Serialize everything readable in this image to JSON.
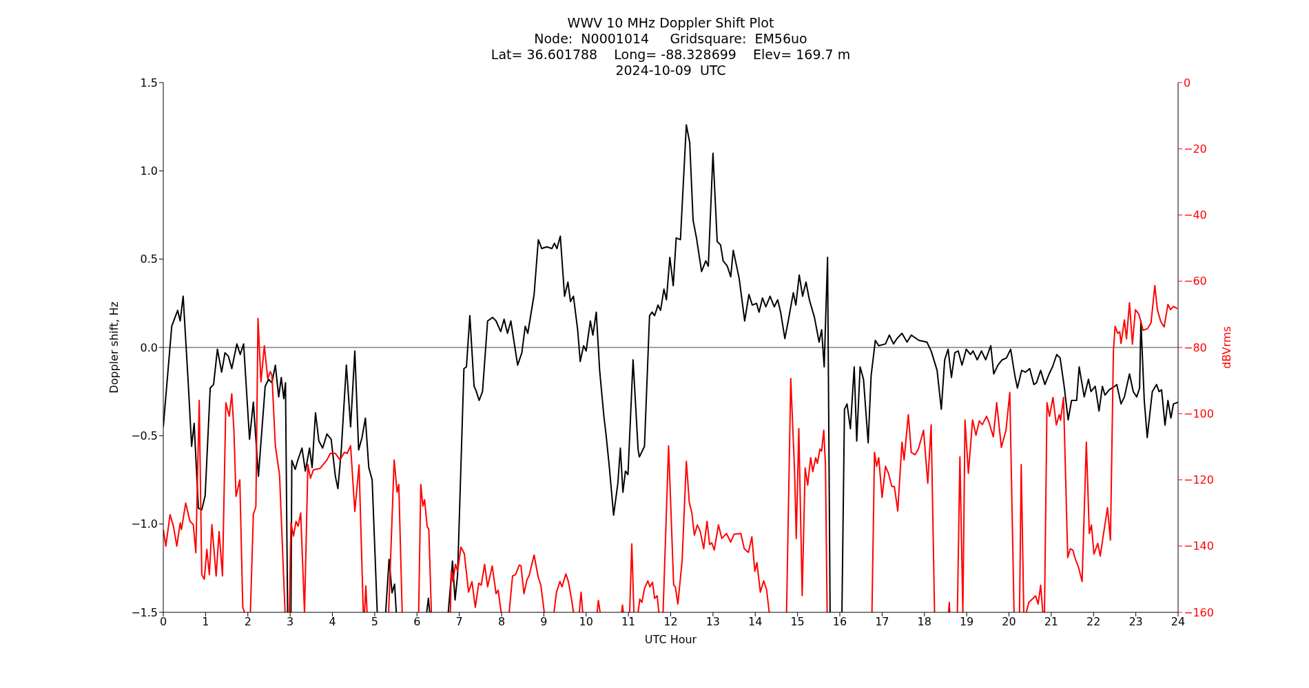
{
  "chart_data": {
    "type": "line",
    "title": "WWV 10 MHz Doppler Shift Plot",
    "subtitle": "Node:  N0001014     Gridsquare:  EM56uo\nLat= 36.601788    Long= -88.328699    Elev= 169.7 m\n2024-10-09  UTC",
    "xlabel": "UTC Hour",
    "ylabel": "Doppler shift, Hz",
    "y2label": "dBVrms",
    "xlim": [
      0,
      24
    ],
    "xticks": [
      0,
      1,
      2,
      3,
      4,
      5,
      6,
      7,
      8,
      9,
      10,
      11,
      12,
      13,
      14,
      15,
      16,
      17,
      18,
      19,
      20,
      21,
      22,
      23,
      24
    ],
    "ylim": [
      -1.5,
      1.5
    ],
    "yticks": [
      {
        "value": -1.5,
        "label": "−1.5"
      },
      {
        "value": -1,
        "label": "−1.0"
      },
      {
        "value": -0.5,
        "label": "−0.5"
      },
      {
        "value": 0,
        "label": "0.0"
      },
      {
        "value": 0.5,
        "label": "0.5"
      },
      {
        "value": 1,
        "label": "1.0"
      },
      {
        "value": 1.5,
        "label": "1.5"
      }
    ],
    "y2lim": [
      -160,
      0
    ],
    "y2ticks": [
      {
        "value": -160,
        "label": "−160"
      },
      {
        "value": -140,
        "label": "−140"
      },
      {
        "value": -120,
        "label": "−120"
      },
      {
        "value": -100,
        "label": "−100"
      },
      {
        "value": -80,
        "label": "−80"
      },
      {
        "value": -60,
        "label": "−60"
      },
      {
        "value": -40,
        "label": "−40"
      },
      {
        "value": -20,
        "label": "−20"
      },
      {
        "value": 0,
        "label": "0"
      }
    ],
    "grid": false,
    "legend": false,
    "ref_lines": [
      {
        "axis": "y",
        "value": 0,
        "color": "#808080"
      }
    ],
    "series": [
      {
        "color": "#000000",
        "x": [
          0,
          0.2,
          0.34,
          0.4,
          0.47,
          0.59,
          0.67,
          0.73,
          0.83,
          0.91,
          0.99,
          1.11,
          1.19,
          1.28,
          1.38,
          1.46,
          1.54,
          1.62,
          1.74,
          1.82,
          1.9,
          2.04,
          2.13,
          2.25,
          2.41,
          2.49,
          2.57,
          2.65,
          2.73,
          2.79,
          2.85,
          2.89,
          2.94,
          2.98,
          3.02,
          3.04,
          3.12,
          3.18,
          3.28,
          3.36,
          3.46,
          3.52,
          3.6,
          3.68,
          3.77,
          3.87,
          3.97,
          4.07,
          4.13,
          4.21,
          4.33,
          4.43,
          4.53,
          4.62,
          4.7,
          4.78,
          4.86,
          4.94,
          5.06,
          5.16,
          5.26,
          5.34,
          5.41,
          5.47,
          5.51,
          5.9,
          6.23,
          6.27,
          6.3,
          6.5,
          6.74,
          6.84,
          6.9,
          6.96,
          7.11,
          7.17,
          7.25,
          7.35,
          7.39,
          7.47,
          7.55,
          7.67,
          7.79,
          7.87,
          7.98,
          8.06,
          8.14,
          8.22,
          8.38,
          8.48,
          8.56,
          8.62,
          8.77,
          8.87,
          8.95,
          9.07,
          9.19,
          9.25,
          9.31,
          9.39,
          9.49,
          9.57,
          9.63,
          9.7,
          9.8,
          9.86,
          9.94,
          10,
          10.1,
          10.16,
          10.24,
          10.32,
          10.42,
          10.47,
          10.55,
          10.65,
          10.75,
          10.81,
          10.87,
          10.93,
          10.99,
          11.11,
          11.23,
          11.26,
          11.38,
          11.5,
          11.56,
          11.62,
          11.7,
          11.76,
          11.84,
          11.9,
          11.98,
          12.06,
          12.13,
          12.23,
          12.37,
          12.45,
          12.53,
          12.61,
          12.73,
          12.83,
          12.89,
          13,
          13.1,
          13.18,
          13.24,
          13.34,
          13.42,
          13.48,
          13.62,
          13.75,
          13.85,
          13.93,
          14.03,
          14.09,
          14.17,
          14.25,
          14.35,
          14.45,
          14.53,
          14.6,
          14.7,
          14.78,
          14.9,
          14.96,
          15.04,
          15.12,
          15.2,
          15.28,
          15.4,
          15.51,
          15.57,
          15.63,
          15.71,
          15.77,
          15.9,
          16.05,
          16.11,
          16.17,
          16.25,
          16.34,
          16.4,
          16.48,
          16.56,
          16.67,
          16.74,
          16.84,
          16.92,
          17.08,
          17.17,
          17.27,
          17.35,
          17.47,
          17.59,
          17.69,
          17.87,
          18.06,
          18.16,
          18.3,
          18.4,
          18.48,
          18.56,
          18.64,
          18.72,
          18.8,
          18.89,
          18.99,
          19.09,
          19.15,
          19.25,
          19.35,
          19.45,
          19.57,
          19.64,
          19.74,
          19.84,
          19.94,
          20.04,
          20.14,
          20.2,
          20.3,
          20.39,
          20.49,
          20.59,
          20.65,
          20.75,
          20.85,
          20.95,
          21.03,
          21.13,
          21.21,
          21.3,
          21.4,
          21.48,
          21.6,
          21.66,
          21.78,
          21.88,
          21.94,
          22.04,
          22.13,
          22.21,
          22.27,
          22.37,
          22.5,
          22.55,
          22.65,
          22.73,
          22.85,
          22.94,
          23.02,
          23.09,
          23.12,
          23.2,
          23.27,
          23.39,
          23.49,
          23.55,
          23.61,
          23.69,
          23.76,
          23.83,
          23.89,
          24
        ],
        "values": [
          -0.45,
          0.12,
          0.21,
          0.15,
          0.29,
          -0.2,
          -0.56,
          -0.43,
          -0.91,
          -0.92,
          -0.84,
          -0.23,
          -0.21,
          -0.01,
          -0.14,
          -0.03,
          -0.05,
          -0.12,
          0.02,
          -0.04,
          0.02,
          -0.52,
          -0.31,
          -0.73,
          -0.22,
          -0.18,
          -0.2,
          -0.1,
          -0.28,
          -0.17,
          -0.29,
          -0.2,
          -1.5,
          null,
          -1.5,
          -0.64,
          -0.69,
          -0.64,
          -0.57,
          -0.7,
          -0.57,
          -0.68,
          -0.37,
          -0.53,
          -0.57,
          -0.49,
          -0.52,
          -0.73,
          -0.8,
          -0.58,
          -0.1,
          -0.45,
          -0.02,
          -0.58,
          -0.51,
          -0.4,
          -0.68,
          -0.75,
          -1.5,
          null,
          -1.5,
          -1.2,
          -1.39,
          -1.34,
          -1.5,
          null,
          -1.5,
          -1.42,
          -1.5,
          null,
          -1.5,
          -1.21,
          -1.43,
          -1.29,
          -0.12,
          -0.11,
          0.18,
          -0.22,
          -0.24,
          -0.3,
          -0.25,
          0.15,
          0.17,
          0.15,
          0.09,
          0.16,
          0.08,
          0.15,
          -0.1,
          -0.03,
          0.12,
          0.08,
          0.3,
          0.61,
          0.56,
          0.57,
          0.56,
          0.59,
          0.56,
          0.63,
          0.29,
          0.37,
          0.26,
          0.29,
          0.1,
          -0.08,
          0.01,
          -0.02,
          0.15,
          0.07,
          0.2,
          -0.13,
          -0.39,
          -0.49,
          -0.68,
          -0.95,
          -0.77,
          -0.57,
          -0.82,
          -0.7,
          -0.72,
          -0.07,
          -0.58,
          -0.62,
          -0.56,
          0.18,
          0.2,
          0.18,
          0.24,
          0.21,
          0.33,
          0.27,
          0.51,
          0.35,
          0.62,
          0.61,
          1.26,
          1.16,
          0.72,
          0.62,
          0.43,
          0.49,
          0.46,
          1.1,
          0.6,
          0.58,
          0.49,
          0.46,
          0.4,
          0.55,
          0.39,
          0.15,
          0.3,
          0.24,
          0.25,
          0.2,
          0.28,
          0.23,
          0.29,
          0.23,
          0.27,
          0.2,
          0.05,
          0.15,
          0.31,
          0.24,
          0.41,
          0.29,
          0.37,
          0.27,
          0.17,
          0.03,
          0.1,
          -0.11,
          0.51,
          -1.5,
          null,
          -1.5,
          -0.35,
          -0.32,
          -0.46,
          -0.11,
          -0.53,
          -0.11,
          -0.18,
          -0.54,
          -0.16,
          0.04,
          0.01,
          0.02,
          0.07,
          0.02,
          0.05,
          0.08,
          0.03,
          0.07,
          0.04,
          0.03,
          -0.02,
          -0.13,
          -0.35,
          -0.07,
          -0.01,
          -0.17,
          -0.03,
          -0.02,
          -0.1,
          -0.01,
          -0.04,
          -0.02,
          -0.07,
          -0.02,
          -0.07,
          0.01,
          -0.15,
          -0.1,
          -0.07,
          -0.06,
          -0.01,
          -0.16,
          -0.23,
          -0.13,
          -0.14,
          -0.12,
          -0.21,
          -0.2,
          -0.13,
          -0.21,
          -0.15,
          -0.11,
          -0.04,
          -0.06,
          -0.21,
          -0.41,
          -0.3,
          -0.3,
          -0.11,
          -0.28,
          -0.18,
          -0.25,
          -0.22,
          -0.36,
          -0.22,
          -0.27,
          -0.24,
          -0.22,
          -0.21,
          -0.32,
          -0.28,
          -0.15,
          -0.25,
          -0.28,
          -0.23,
          0.15,
          -0.3,
          -0.51,
          -0.25,
          -0.21,
          -0.25,
          -0.24,
          -0.44,
          -0.3,
          -0.4,
          -0.32,
          -0.31
        ]
      },
      {
        "color": "#ff0000",
        "axis": "y2",
        "x": [
          0,
          0.06,
          0.16,
          0.24,
          0.32,
          0.4,
          0.43,
          0.53,
          0.63,
          0.71,
          0.77,
          0.85,
          0.91,
          0.97,
          1.03,
          1.09,
          1.15,
          1.25,
          1.32,
          1.4,
          1.48,
          1.56,
          1.62,
          1.67,
          1.72,
          1.81,
          1.88,
          1.92,
          2,
          2.06,
          2.13,
          2.19,
          2.24,
          2.31,
          2.39,
          2.47,
          2.53,
          2.57,
          2.65,
          2.75,
          2.88,
          2.93,
          2.98,
          3.02,
          3.08,
          3.14,
          3.19,
          3.25,
          3.34,
          3.42,
          3.48,
          3.55,
          3.71,
          3.87,
          3.95,
          4.07,
          4.18,
          4.28,
          4.35,
          4.43,
          4.53,
          4.63,
          4.73,
          4.76,
          4.79,
          4.82,
          5.1,
          5.33,
          5.46,
          5.53,
          5.57,
          5.65,
          5.85,
          6.04,
          6.09,
          6.14,
          6.18,
          6.24,
          6.28,
          6.34,
          6.55,
          6.79,
          6.81,
          6.85,
          6.91,
          6.96,
          7.04,
          7.12,
          7.22,
          7.3,
          7.38,
          7.46,
          7.52,
          7.6,
          7.67,
          7.78,
          7.87,
          7.92,
          7.99,
          8.1,
          8.18,
          8.26,
          8.33,
          8.42,
          8.46,
          8.53,
          8.6,
          8.65,
          8.77,
          8.87,
          8.93,
          9.01,
          9.1,
          9.24,
          9.3,
          9.38,
          9.43,
          9.52,
          9.58,
          9.66,
          9.7,
          9.77,
          9.84,
          9.88,
          9.92,
          10.1,
          10.26,
          10.29,
          10.33,
          10.6,
          10.84,
          10.86,
          10.88,
          10.95,
          11.03,
          11.08,
          11.13,
          11.18,
          11.23,
          11.27,
          11.32,
          11.38,
          11.46,
          11.51,
          11.57,
          11.62,
          11.68,
          11.72,
          11.77,
          11.82,
          11.95,
          12.07,
          12.11,
          12.17,
          12.27,
          12.37,
          12.44,
          12.5,
          12.56,
          12.63,
          12.7,
          12.78,
          12.86,
          12.92,
          12.97,
          13.03,
          13.13,
          13.21,
          13.32,
          13.42,
          13.5,
          13.66,
          13.74,
          13.84,
          13.92,
          13.99,
          14.04,
          14.12,
          14.2,
          14.27,
          14.33,
          14.5,
          14.74,
          14.84,
          14.93,
          14.97,
          15.03,
          15.11,
          15.18,
          15.24,
          15.31,
          15.36,
          15.43,
          15.47,
          15.53,
          15.57,
          15.62,
          15.66,
          15.7,
          16.2,
          16.76,
          16.82,
          16.87,
          16.92,
          17,
          17.08,
          17.15,
          17.23,
          17.29,
          17.37,
          17.47,
          17.52,
          17.62,
          17.69,
          17.78,
          17.86,
          17.98,
          18.08,
          18.16,
          18.24,
          18.4,
          18.57,
          18.59,
          18.6,
          18.7,
          18.78,
          18.84,
          18.91,
          18.96,
          19.04,
          19.14,
          19.22,
          19.3,
          19.37,
          19.47,
          19.53,
          19.63,
          19.71,
          19.82,
          19.93,
          20.02,
          20.12,
          20.18,
          20.25,
          20.29,
          20.35,
          20.38,
          20.41,
          20.47,
          20.57,
          20.63,
          20.69,
          20.75,
          20.8,
          20.82,
          20.84,
          20.9,
          20.96,
          21.04,
          21.12,
          21.19,
          21.22,
          21.29,
          21.39,
          21.45,
          21.51,
          21.57,
          21.65,
          21.73,
          21.83,
          21.9,
          21.95,
          22.01,
          22.1,
          22.16,
          22.22,
          22.33,
          22.4,
          22.47,
          22.51,
          22.57,
          22.62,
          22.65,
          22.73,
          22.78,
          22.85,
          22.92,
          22.99,
          23.07,
          23.12,
          23.17,
          23.28,
          23.36,
          23.45,
          23.51,
          23.59,
          23.67,
          23.76,
          23.82,
          23.89,
          23.98
        ],
        "values": [
          -135,
          -140,
          -130.5,
          -134,
          -140,
          -133,
          -135,
          -127,
          -132.5,
          -133.5,
          -142,
          -96,
          -148.6,
          -150,
          -141,
          -148.6,
          -133.5,
          -149,
          -135.6,
          -149,
          -96.7,
          -100.8,
          -94,
          -105,
          -125,
          -120,
          -158.5,
          -160,
          null,
          -160,
          -130.5,
          -128,
          -71.2,
          -90.4,
          -79.5,
          -89.4,
          -87.3,
          -88.4,
          -109.7,
          -118.5,
          -160,
          null,
          -160,
          -133,
          -137,
          -132.5,
          -134,
          -130,
          -160,
          -115.4,
          -119.5,
          -117,
          -116.5,
          -114,
          -112,
          -112,
          -114,
          -111.7,
          -112,
          -109.7,
          -129.5,
          -115.5,
          -160,
          -160,
          -152,
          -160,
          null,
          -160,
          -114,
          -123.7,
          -121.4,
          -160,
          null,
          -160,
          -121.4,
          -127.9,
          -126,
          -134,
          -135,
          -160,
          null,
          -160,
          -147.6,
          -150.7,
          -145.5,
          -147.6,
          -140.3,
          -142.3,
          -153.9,
          -150.7,
          -158.5,
          -151.2,
          -151.8,
          -145.5,
          -152.3,
          -146,
          -154.4,
          -153.3,
          -160,
          null,
          -160,
          -149,
          -148.6,
          -145.7,
          -146,
          -154.4,
          -150.2,
          -149,
          -142.7,
          -149.6,
          -151.8,
          -160,
          null,
          -160,
          -153.9,
          -150.7,
          -152.3,
          -148.4,
          -150.7,
          -156.4,
          -160,
          null,
          -160,
          -153.9,
          -160,
          null,
          -160,
          -156.4,
          -160,
          null,
          -160,
          -157.8,
          -160,
          null,
          -160,
          -139.3,
          -160,
          null,
          -160,
          -156,
          -157,
          -152.8,
          -150.5,
          -152.3,
          -150.9,
          -155.8,
          -155,
          -160,
          null,
          -160,
          -109.7,
          -151.8,
          -152.3,
          -157.5,
          -144.5,
          -114.4,
          -126.8,
          -129.9,
          -136.7,
          -133.6,
          -135.6,
          -140.8,
          -132.5,
          -139.5,
          -139,
          -141.2,
          -133.6,
          -137.7,
          -136.2,
          -138.8,
          -136.4,
          -136.2,
          -140.8,
          -141.9,
          -137.2,
          -147.6,
          -145,
          -153.9,
          -150.5,
          -153.3,
          -160,
          null,
          -160,
          -89.4,
          -117.5,
          -137.7,
          -104.5,
          -154.9,
          -116.4,
          -121.6,
          -113.3,
          -117.5,
          -113.3,
          -115,
          -110.7,
          -111.3,
          -105,
          -115.4,
          -160,
          null,
          -160,
          -111.7,
          -115.9,
          -113.3,
          -125.3,
          -115.9,
          -118,
          -122,
          -122,
          -129.4,
          -108.6,
          -114,
          -100.3,
          -111.7,
          -112.4,
          -110.6,
          -105,
          -121,
          -103.4,
          -160,
          null,
          -160,
          -157,
          -160,
          null,
          -160,
          -113.1,
          -160,
          -101.9,
          -118,
          -101.9,
          -106.5,
          -102.2,
          -103.3,
          -100.8,
          -102.7,
          -107,
          -96.7,
          -110.2,
          -105,
          -93.6,
          -160,
          null,
          -160,
          -115.4,
          -160,
          null,
          -160,
          -157,
          -155.8,
          -155,
          -157.5,
          -151.8,
          -160,
          null,
          -160,
          -96.7,
          -100.8,
          -95.1,
          -103.4,
          -100.3,
          -102,
          -95.1,
          -143.5,
          -140.8,
          -141.2,
          -143.9,
          -146.6,
          -150.7,
          -108.6,
          -136.2,
          -133.6,
          -142.4,
          -139.2,
          -143,
          -137.7,
          -128.4,
          -138.2,
          -81.1,
          -73.6,
          -75.7,
          -75.3,
          -78.8,
          -71.7,
          -77.4,
          -66.5,
          -79,
          -68.6,
          -69.9,
          -72.2,
          -74.8,
          -74.3,
          -72.5,
          -61.3,
          -68.6,
          -72.2,
          -73.8,
          -67,
          -68.6,
          -67.6,
          -68.3
        ]
      }
    ]
  }
}
